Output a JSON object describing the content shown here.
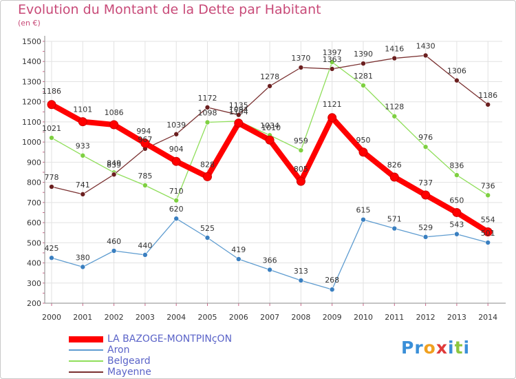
{
  "header": {
    "title": "Evolution du Montant de la Dette par Habitant",
    "unit": "(en €)"
  },
  "logo": {
    "letters": [
      "P",
      "r",
      "o",
      "x",
      "i",
      "t",
      "i"
    ],
    "colors": [
      "#3a8fd8",
      "#3a8fd8",
      "#f0a020",
      "#e03a3a",
      "#3a8fd8",
      "#8cc63f",
      "#3a8fd8"
    ]
  },
  "chart_data": {
    "type": "line",
    "title": "Evolution du Montant de la Dette par Habitant",
    "ylabel": "(en €)",
    "xlabel": "",
    "x": [
      "2000",
      "2001",
      "2002",
      "2003",
      "2004",
      "2005",
      "2006",
      "2007",
      "2008",
      "2009",
      "2010",
      "2011",
      "2012",
      "2013",
      "2014"
    ],
    "ylim": [
      200,
      1500
    ],
    "yticks": [
      200,
      300,
      400,
      500,
      600,
      700,
      800,
      900,
      1000,
      1100,
      1200,
      1300,
      1400,
      1500
    ],
    "grid": true,
    "legend_position": "bottom-left",
    "series": [
      {
        "name": "LA BAZOGE-MONTPINçON",
        "color": "#ff0000",
        "marker": "#ff0000",
        "values": [
          1186,
          1101,
          1086,
          994,
          904,
          828,
          1094,
          1010,
          805,
          1121,
          950,
          826,
          737,
          650,
          554
        ]
      },
      {
        "name": "Aron",
        "color": "#5e9cd0",
        "marker": "#3a7fc0",
        "values": [
          425,
          380,
          460,
          440,
          620,
          525,
          419,
          366,
          313,
          268,
          615,
          571,
          529,
          543,
          501
        ]
      },
      {
        "name": "Belgeard",
        "color": "#8fde5a",
        "marker": "#7ed041",
        "values": [
          1021,
          933,
          849,
          785,
          710,
          1098,
          1104,
          1034,
          959,
          1397,
          1281,
          1128,
          976,
          836,
          736
        ]
      },
      {
        "name": "Mayenne",
        "color": "#7a3030",
        "marker": "#6b1f1f",
        "values": [
          778,
          741,
          839,
          967,
          1039,
          1172,
          1135,
          1278,
          1370,
          1363,
          1390,
          1416,
          1430,
          1306,
          1186
        ]
      }
    ]
  }
}
